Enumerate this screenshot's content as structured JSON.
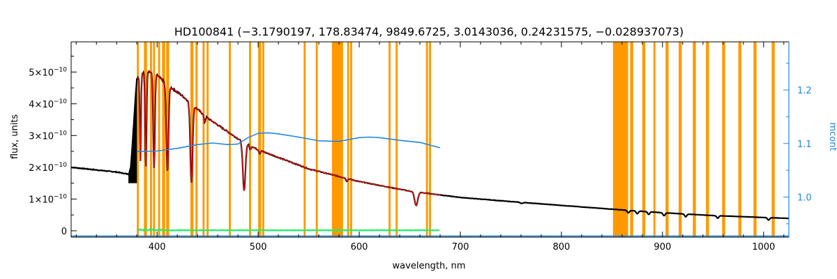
{
  "chart_data": {
    "type": "line",
    "title": "HD100841    (−3.1790197, 178.83474, 9849.6725, 3.0143036, 0.24231575, −0.028937073)",
    "xlabel": "wavelength, nm",
    "ylabel": "flux, units",
    "y2label": "mcont",
    "xlim": [
      315,
      1025
    ],
    "ylim": [
      -2e-11,
      5.95e-10
    ],
    "y2lim": [
      0.925,
      1.29
    ],
    "xticks": [
      400,
      500,
      600,
      700,
      800,
      900,
      1000
    ],
    "yticks": [
      0,
      1e-10,
      2e-10,
      3e-10,
      4e-10,
      5e-10
    ],
    "ytick_labels": [
      {
        "mant": "0",
        "exp": ""
      },
      {
        "mant": "1×10",
        "exp": "−10"
      },
      {
        "mant": "2×10",
        "exp": "−10"
      },
      {
        "mant": "3×10",
        "exp": "−10"
      },
      {
        "mant": "4×10",
        "exp": "−10"
      },
      {
        "mant": "5×10",
        "exp": "−10"
      }
    ],
    "y2ticks": [
      1.0,
      1.1,
      1.2
    ],
    "y2tick_labels": [
      "1.0",
      "1.1",
      "1.2"
    ],
    "colors": {
      "observed": "#000000",
      "model": "#e01010",
      "mcont": "#1f87e0",
      "residual": "#22ee66",
      "masks": "#ff9900"
    },
    "mask_regions": [
      [
        380,
        382
      ],
      [
        387,
        390
      ],
      [
        393,
        395
      ],
      [
        396,
        398
      ],
      [
        401,
        403
      ],
      [
        405,
        408
      ],
      [
        409,
        412
      ],
      [
        433,
        436
      ],
      [
        438,
        440
      ],
      [
        445,
        447
      ],
      [
        449,
        451
      ],
      [
        471,
        473
      ],
      [
        491,
        493
      ],
      [
        500,
        503
      ],
      [
        504,
        506
      ],
      [
        545,
        547
      ],
      [
        557,
        559
      ],
      [
        573,
        584
      ],
      [
        588,
        590
      ],
      [
        591,
        593
      ],
      [
        629,
        631
      ],
      [
        636,
        638
      ],
      [
        666,
        668
      ],
      [
        669,
        671
      ],
      [
        851,
        866
      ],
      [
        868,
        871
      ],
      [
        880,
        883
      ],
      [
        891,
        893
      ],
      [
        903,
        906
      ],
      [
        916,
        919
      ],
      [
        930,
        933
      ],
      [
        943,
        946
      ],
      [
        959,
        962
      ],
      [
        975,
        978
      ],
      [
        990,
        993
      ],
      [
        1008,
        1011
      ]
    ],
    "continuum": {
      "x": [
        315,
        360,
        372,
        374,
        376,
        378,
        380,
        390,
        400,
        410,
        425,
        450,
        480,
        500,
        550,
        600,
        650,
        700,
        750,
        800,
        850,
        900,
        950,
        1000,
        1025
      ],
      "y": [
        2e-10,
        1.85e-10,
        1.78e-10,
        2e-10,
        2.9e-10,
        3.9e-10,
        4.8e-10,
        5.05e-10,
        4.9e-10,
        4.6e-10,
        4.25e-10,
        3.55e-10,
        2.9e-10,
        2.55e-10,
        1.95e-10,
        1.55e-10,
        1.25e-10,
        1.05e-10,
        9.2e-11,
        8e-11,
        6.8e-11,
        5.7e-11,
        4.8e-11,
        4.2e-11,
        3.9e-11
      ]
    },
    "balmer_jump_band": [
      372,
      380
    ],
    "absorption_lines": [
      {
        "center": 383.5,
        "depth": 0.55,
        "width": 0.8
      },
      {
        "center": 388.9,
        "depth": 0.6,
        "width": 1.0
      },
      {
        "center": 397.0,
        "depth": 0.6,
        "width": 1.2
      },
      {
        "center": 410.2,
        "depth": 0.6,
        "width": 1.5
      },
      {
        "center": 434.0,
        "depth": 0.62,
        "width": 1.6
      },
      {
        "center": 447.1,
        "depth": 0.06,
        "width": 1.0
      },
      {
        "center": 486.1,
        "depth": 0.55,
        "width": 1.8
      },
      {
        "center": 492.2,
        "depth": 0.05,
        "width": 1.0
      },
      {
        "center": 501.6,
        "depth": 0.04,
        "width": 1.0
      },
      {
        "center": 587.6,
        "depth": 0.05,
        "width": 1.2
      },
      {
        "center": 656.3,
        "depth": 0.35,
        "width": 2.2
      },
      {
        "center": 760.5,
        "depth": 0.04,
        "width": 1.5
      },
      {
        "center": 866.2,
        "depth": 0.12,
        "width": 1.5
      },
      {
        "center": 875.0,
        "depth": 0.14,
        "width": 1.5
      },
      {
        "center": 886.3,
        "depth": 0.14,
        "width": 1.5
      },
      {
        "center": 901.5,
        "depth": 0.16,
        "width": 1.5
      },
      {
        "center": 922.9,
        "depth": 0.16,
        "width": 1.5
      },
      {
        "center": 954.6,
        "depth": 0.16,
        "width": 1.5
      },
      {
        "center": 1004.9,
        "depth": 0.18,
        "width": 1.5
      }
    ],
    "model_range": [
      380,
      680
    ],
    "mcont_curve": {
      "x": [
        380,
        400,
        420,
        440,
        455,
        470,
        480,
        490,
        500,
        510,
        520,
        540,
        560,
        580,
        600,
        610,
        620,
        640,
        660,
        680
      ],
      "y": [
        1.085,
        1.086,
        1.091,
        1.098,
        1.101,
        1.098,
        1.099,
        1.111,
        1.119,
        1.12,
        1.118,
        1.112,
        1.105,
        1.104,
        1.111,
        1.112,
        1.111,
        1.106,
        1.102,
        1.092
      ]
    },
    "mcont_floor": 0.927,
    "residual_range": [
      380,
      680
    ],
    "residual_level": 1e-12
  }
}
